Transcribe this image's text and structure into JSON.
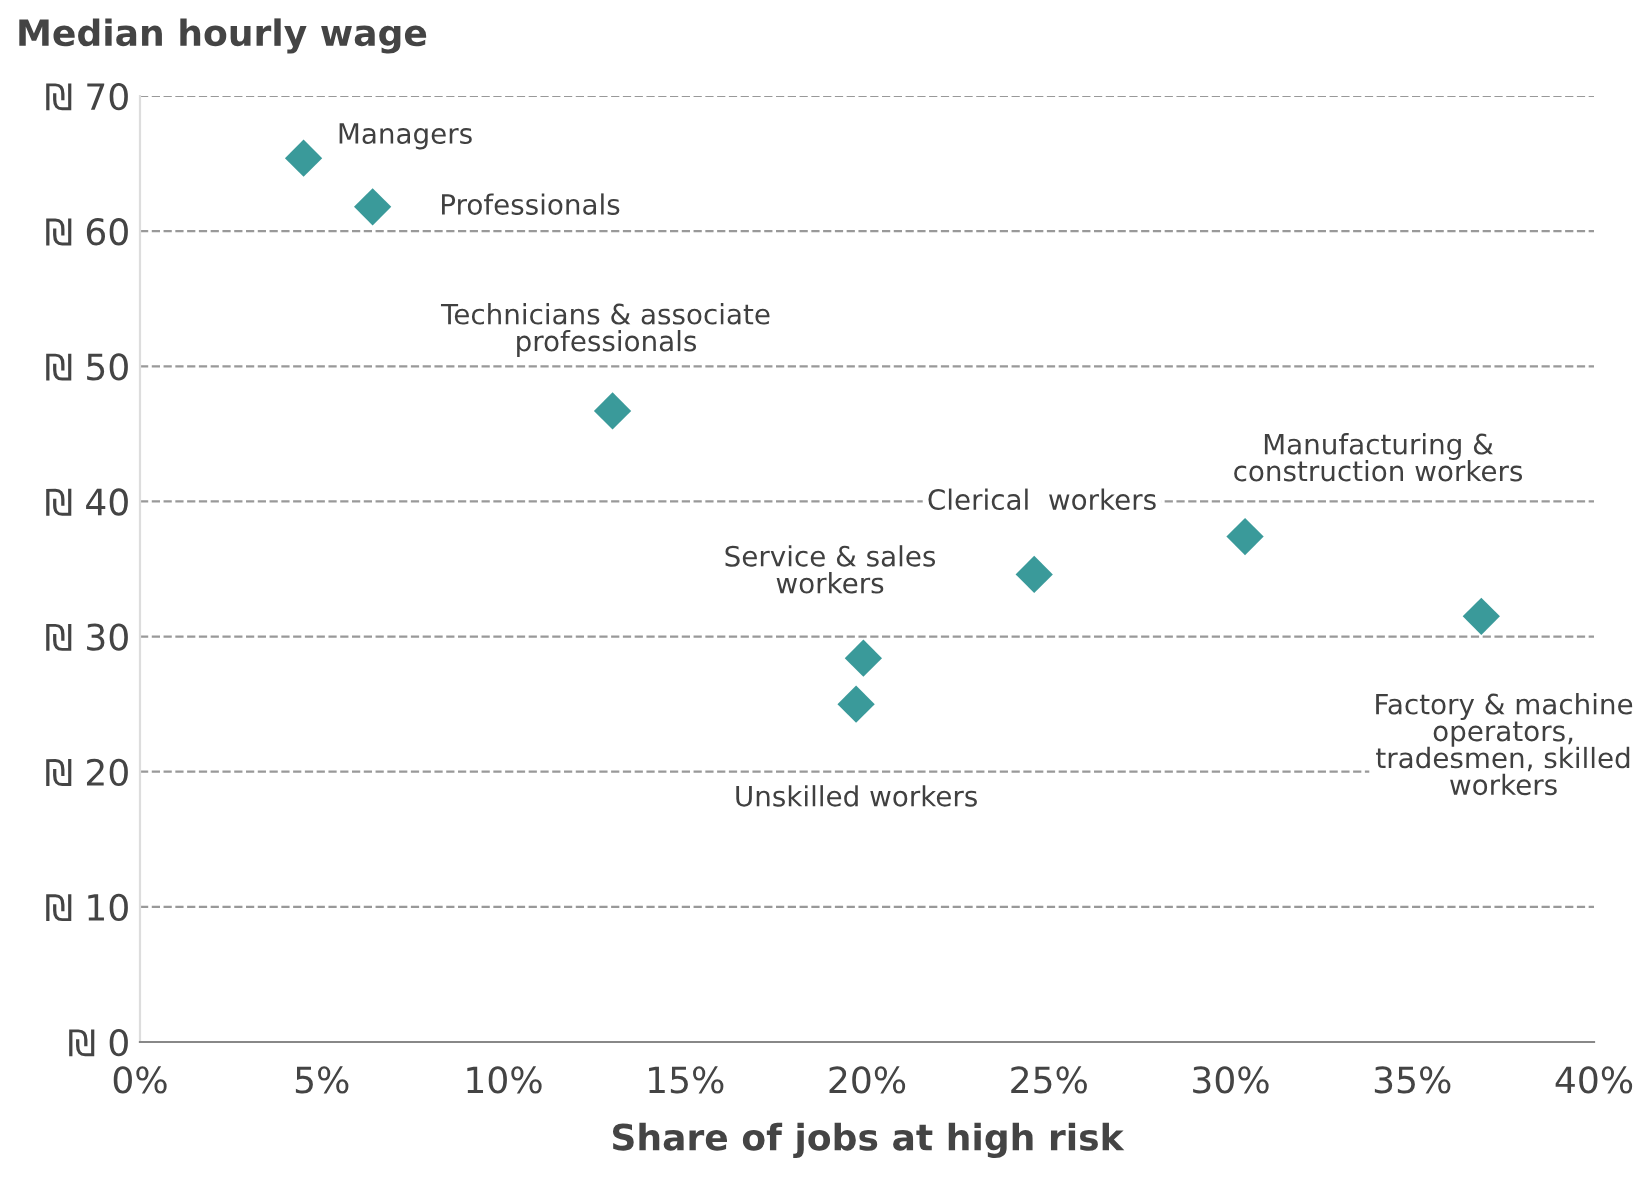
{
  "chart_data": {
    "type": "scatter",
    "ylabel": "Median hourly wage",
    "xlabel": "Share of jobs at high risk",
    "x": [
      4.5,
      6.4,
      13.0,
      19.9,
      19.7,
      24.6,
      30.4,
      36.9
    ],
    "series": [
      {
        "color": "#3a9a9a",
        "values": [
          65.4,
          61.8,
          46.7,
          28.4,
          25.0,
          34.6,
          37.4,
          31.5
        ]
      }
    ],
    "marker": "diamond",
    "grid": "y",
    "xlim": [
      0,
      40
    ],
    "xticks": [
      {
        "value": 0,
        "label": "0%"
      },
      {
        "value": 5,
        "label": "5%"
      },
      {
        "value": 10,
        "label": "10%"
      },
      {
        "value": 15,
        "label": "15%"
      },
      {
        "value": 20,
        "label": "20%"
      },
      {
        "value": 25,
        "label": "25%"
      },
      {
        "value": 30,
        "label": "30%"
      },
      {
        "value": 35,
        "label": "35%"
      },
      {
        "value": 40,
        "label": "40%"
      }
    ],
    "ylim": [
      0,
      70
    ],
    "yticks": [
      {
        "value": 0,
        "label": "₪ 0"
      },
      {
        "value": 10,
        "label": "₪ 10"
      },
      {
        "value": 20,
        "label": "₪ 20"
      },
      {
        "value": 30,
        "label": "₪ 30"
      },
      {
        "value": 40,
        "label": "₪ 40"
      },
      {
        "value": 50,
        "label": "₪ 50"
      },
      {
        "value": 60,
        "label": "₪ 60"
      },
      {
        "value": 70,
        "label": "₪ 70"
      }
    ],
    "annotations": [
      {
        "text": "Managers",
        "x": 4.5,
        "y": 65.4
      },
      {
        "text": "Professionals",
        "x": 6.4,
        "y": 61.8
      },
      "Technicians & associate\nprofessionals",
      {
        "text": "Service & sales\nworkers",
        "x": 19.9,
        "y": 28.4
      },
      {
        "text": "Unskilled workers",
        "x": 19.7,
        "y": 25.0
      },
      "Clerical  workers",
      "Manufacturing &\nconstruction workers",
      {
        "text": "Factory & machine\noperators,\ntradesmen, skilled\nworkers",
        "x": 36.9,
        "y": 31.5
      }
    ]
  }
}
